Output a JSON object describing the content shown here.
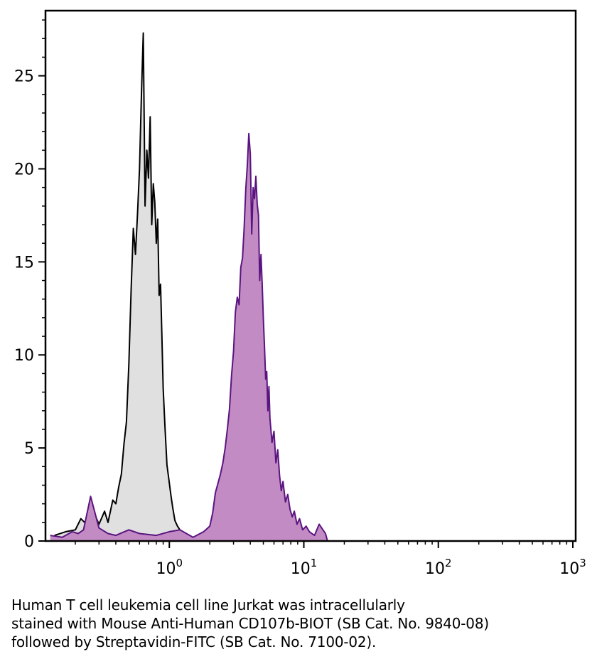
{
  "chart_data": {
    "type": "area",
    "title": "",
    "xlabel": "",
    "ylabel": "",
    "x_scale": "log",
    "xlim": [
      0.12,
      1050
    ],
    "ylim": [
      0,
      28.5
    ],
    "x_tick_labels": [
      {
        "value": 1,
        "base": "10",
        "exp": "0"
      },
      {
        "value": 10,
        "base": "10",
        "exp": "1"
      },
      {
        "value": 100,
        "base": "10",
        "exp": "2"
      },
      {
        "value": 1000,
        "base": "10",
        "exp": "3"
      }
    ],
    "y_ticks": [
      0,
      5,
      10,
      15,
      20,
      25
    ],
    "y_tick_labels": [
      "0",
      "5",
      "10",
      "15",
      "20",
      "25"
    ],
    "grid": false,
    "legend": "none",
    "series": [
      {
        "color": "#000000",
        "fill": "#e0e0e0",
        "x": [
          0.14,
          0.17,
          0.2,
          0.22,
          0.25,
          0.28,
          0.3,
          0.33,
          0.35,
          0.38,
          0.4,
          0.42,
          0.44,
          0.46,
          0.48,
          0.5,
          0.52,
          0.54,
          0.56,
          0.58,
          0.6,
          0.62,
          0.64,
          0.66,
          0.68,
          0.7,
          0.72,
          0.74,
          0.76,
          0.78,
          0.8,
          0.82,
          0.84,
          0.86,
          0.88,
          0.9,
          0.93,
          0.96,
          1.0,
          1.03,
          1.06,
          1.1,
          1.15,
          1.2,
          1.25,
          1.3,
          1.38,
          1.45
        ],
        "y": [
          0.3,
          0.5,
          0.6,
          1.2,
          0.8,
          1.4,
          0.9,
          1.6,
          1.0,
          2.2,
          2.0,
          2.9,
          3.6,
          5.2,
          6.4,
          9.5,
          13.5,
          16.8,
          15.4,
          17.6,
          20.0,
          24.0,
          27.3,
          18.0,
          21.0,
          19.5,
          22.8,
          17.0,
          19.2,
          18.2,
          16.0,
          17.3,
          13.2,
          13.8,
          11.0,
          8.2,
          6.0,
          4.1,
          3.1,
          2.4,
          1.8,
          1.1,
          0.8,
          0.6,
          0.3,
          0.2,
          0.1,
          0
        ]
      },
      {
        "color": "#5a1480",
        "fill": "#c38bc4",
        "x": [
          0.13,
          0.16,
          0.19,
          0.21,
          0.23,
          0.26,
          0.3,
          0.35,
          0.4,
          0.5,
          0.6,
          0.8,
          1.0,
          1.2,
          1.5,
          1.8,
          2.0,
          2.1,
          2.2,
          2.3,
          2.4,
          2.5,
          2.6,
          2.7,
          2.8,
          2.9,
          3.0,
          3.1,
          3.2,
          3.3,
          3.4,
          3.5,
          3.6,
          3.7,
          3.8,
          3.9,
          4.0,
          4.1,
          4.2,
          4.3,
          4.4,
          4.5,
          4.6,
          4.7,
          4.8,
          4.9,
          5.0,
          5.1,
          5.2,
          5.3,
          5.4,
          5.5,
          5.6,
          5.8,
          6.0,
          6.2,
          6.4,
          6.6,
          6.8,
          7.0,
          7.3,
          7.6,
          7.9,
          8.2,
          8.5,
          8.9,
          9.3,
          9.8,
          10.4,
          11.0,
          12.0,
          13.0,
          14.5,
          15.0
        ],
        "y": [
          0.3,
          0.2,
          0.5,
          0.4,
          0.6,
          2.4,
          0.7,
          0.4,
          0.3,
          0.6,
          0.4,
          0.3,
          0.5,
          0.6,
          0.2,
          0.5,
          0.8,
          1.5,
          2.6,
          3.1,
          3.6,
          4.2,
          5.0,
          6.0,
          7.1,
          8.9,
          10.2,
          12.3,
          13.1,
          12.7,
          14.7,
          15.2,
          16.8,
          18.9,
          20.2,
          21.9,
          20.8,
          16.5,
          19.0,
          18.4,
          19.6,
          18.1,
          17.5,
          14.0,
          15.4,
          13.8,
          12.0,
          10.4,
          8.7,
          9.1,
          7.0,
          8.3,
          6.6,
          5.3,
          5.9,
          4.2,
          4.9,
          3.5,
          2.7,
          3.2,
          2.1,
          2.5,
          1.7,
          1.3,
          1.6,
          0.9,
          1.2,
          0.6,
          0.8,
          0.5,
          0.3,
          0.9,
          0.4,
          0
        ]
      }
    ]
  },
  "caption": {
    "line1": "Human T cell leukemia cell line Jurkat was intracellularly",
    "line2": "stained with Mouse Anti-Human CD107b-BIOT (SB Cat. No. 9840-08)",
    "line3": "followed by Streptavidin-FITC (SB Cat. No. 7100-02)."
  }
}
